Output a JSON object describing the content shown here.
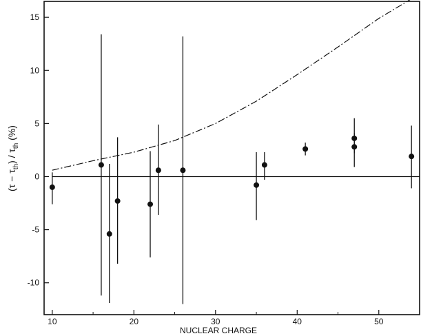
{
  "chart_data": {
    "type": "scatter",
    "xlabel": "NUCLEAR CHARGE",
    "ylabel": "(τ − τth) / τth (%)",
    "ylabel_parts": {
      "open": "(τ − τ",
      "sub1": "th",
      "mid": ") / τ",
      "sub2": "th",
      "close": " (%)"
    },
    "xlim": [
      9,
      55
    ],
    "ylim": [
      -13,
      16.5
    ],
    "xticks": [
      10,
      20,
      30,
      40,
      50
    ],
    "yticks": [
      15,
      10,
      5,
      0,
      -5,
      -10
    ],
    "grid": false,
    "legend": "none",
    "zero_line": 0,
    "points": [
      {
        "x": 10,
        "y": -1.0,
        "err_lo": -2.6,
        "err_hi": 0.4
      },
      {
        "x": 16,
        "y": 1.1,
        "err_lo": -11.2,
        "err_hi": 13.4
      },
      {
        "x": 17,
        "y": -5.4,
        "err_lo": -11.9,
        "err_hi": 1.2
      },
      {
        "x": 18,
        "y": -2.3,
        "err_lo": -8.2,
        "err_hi": 3.7
      },
      {
        "x": 22,
        "y": -2.6,
        "err_lo": -7.6,
        "err_hi": 2.4
      },
      {
        "x": 23,
        "y": 0.6,
        "err_lo": -3.6,
        "err_hi": 4.9
      },
      {
        "x": 26,
        "y": 0.6,
        "err_lo": -12.0,
        "err_hi": 13.2
      },
      {
        "x": 35,
        "y": -0.8,
        "err_lo": -4.1,
        "err_hi": 2.3
      },
      {
        "x": 36,
        "y": 1.1,
        "err_lo": -0.3,
        "err_hi": 2.3
      },
      {
        "x": 41,
        "y": 2.6,
        "err_lo": 2.0,
        "err_hi": 3.2
      },
      {
        "x": 47,
        "y": 3.6,
        "err_lo": 2.2,
        "err_hi": 5.5
      },
      {
        "x": 47,
        "y": 2.8,
        "err_lo": 0.9,
        "err_hi": 4.1
      },
      {
        "x": 54,
        "y": 1.9,
        "err_lo": -1.1,
        "err_hi": 4.8
      }
    ],
    "curve": {
      "style": "dash-dot",
      "x": [
        10,
        15,
        20,
        25,
        30,
        35,
        40,
        45,
        50,
        55
      ],
      "y": [
        0.6,
        1.5,
        2.3,
        3.4,
        5.0,
        7.1,
        9.6,
        12.2,
        14.9,
        17.2
      ]
    }
  }
}
